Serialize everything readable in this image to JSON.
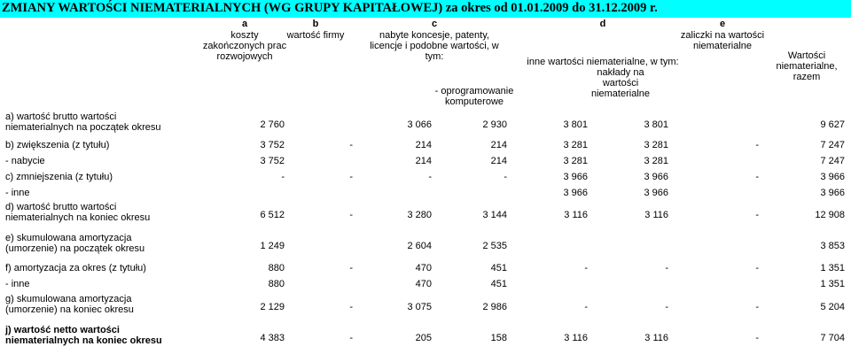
{
  "title": "ZMIANY WARTOŚCI NIEMATERIALNYCH (WG GRUPY KAPITAŁOWEJ) za okres od 01.01.2009 do 31.12.2009 r.",
  "headers": {
    "a_letter": "a",
    "a_text": "koszty zakończonych prac rozwojowych",
    "b_letter": "b",
    "b_text": "wartość firmy",
    "c_letter": "c",
    "c_text": "nabyte koncesje, patenty, licencje i podobne wartości, w tym:",
    "c_sub": "- oprogramowanie komputerowe",
    "d_letter": "d",
    "d_text": "inne wartości niematerialne, w tym:",
    "d_sub": "nakłady na wartości niematerialne",
    "e_letter": "e",
    "e_text": "zaliczki na wartości niematerialne",
    "total": "Wartości niematerialne, razem"
  },
  "rows": [
    {
      "label": "a) wartość brutto wartości niematerialnych na początek okresu",
      "bold": false,
      "values": [
        "2 760",
        "",
        "3 066",
        "2 930",
        "3 801",
        "3 801",
        "",
        "9 627"
      ]
    },
    {
      "label": "b) zwiększenia (z tytułu)",
      "bold": false,
      "values": [
        "3 752",
        "-",
        "214",
        "214",
        "3 281",
        "3 281",
        "-",
        "7 247"
      ]
    },
    {
      "label": "- nabycie",
      "bold": false,
      "values": [
        "3 752",
        "",
        "214",
        "214",
        "3 281",
        "3 281",
        "",
        "7 247"
      ]
    },
    {
      "label": "c) zmniejszenia (z tytułu)",
      "bold": false,
      "values": [
        "-",
        "-",
        "-",
        "-",
        "3 966",
        "3 966",
        "-",
        "3 966"
      ]
    },
    {
      "label": "- inne",
      "bold": false,
      "values": [
        "",
        "",
        "",
        "",
        "3 966",
        "3 966",
        "",
        "3 966"
      ]
    },
    {
      "label": "d) wartość brutto wartości niematerialnych na koniec okresu",
      "bold": false,
      "values": [
        "6 512",
        "-",
        "3 280",
        "3 144",
        "3 116",
        "3 116",
        "-",
        "12 908"
      ]
    },
    {
      "label": "e) skumulowana amortyzacja (umorzenie) na początek okresu",
      "bold": false,
      "values": [
        "1 249",
        "",
        "2 604",
        "2 535",
        "",
        "",
        "",
        "3 853"
      ]
    },
    {
      "label": "f) amortyzacja za okres (z tytułu)",
      "bold": false,
      "values": [
        "880",
        "-",
        "470",
        "451",
        "-",
        "-",
        "-",
        "1 351"
      ]
    },
    {
      "label": "- inne",
      "bold": false,
      "values": [
        "880",
        "",
        "470",
        "451",
        "",
        "",
        "",
        "1 351"
      ]
    },
    {
      "label": "g) skumulowana amortyzacja (umorzenie) na koniec okresu",
      "bold": false,
      "values": [
        "2 129",
        "-",
        "3 075",
        "2 986",
        "-",
        "-",
        "-",
        "5 204"
      ]
    },
    {
      "label": "j) wartość netto wartości niematerialnych na koniec okresu",
      "bold": true,
      "values": [
        "4 383",
        "-",
        "205",
        "158",
        "3 116",
        "3 116",
        "-",
        "7 704"
      ]
    }
  ]
}
